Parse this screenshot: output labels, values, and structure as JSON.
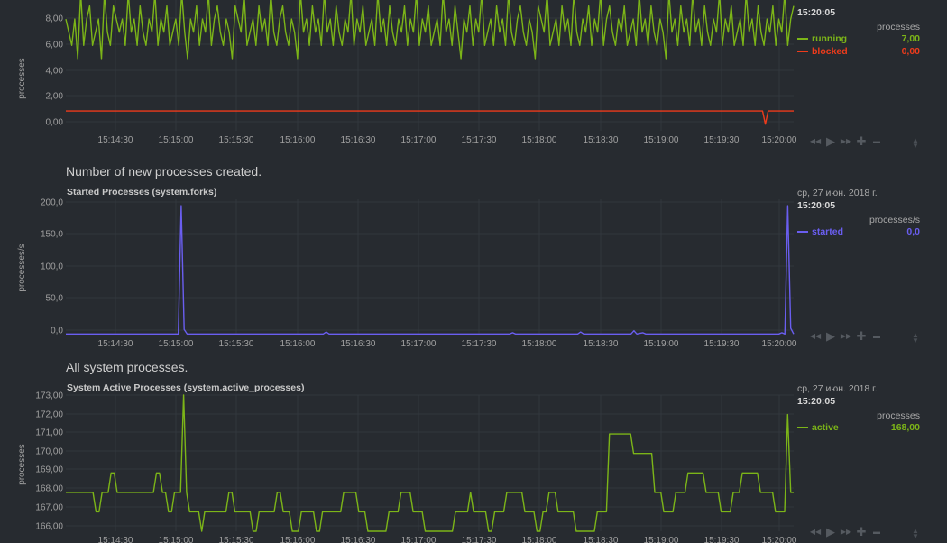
{
  "charts": [
    {
      "id": "processes",
      "description": "",
      "title": "",
      "date": "",
      "time": "15:20:05",
      "units": "processes",
      "ylabel": "processes",
      "series": [
        {
          "name": "running",
          "color": "#7cb518",
          "value": "7,00"
        },
        {
          "name": "blocked",
          "color": "#ee3b1b",
          "value": "0,00"
        }
      ]
    },
    {
      "id": "forks",
      "description": "Number of new processes created.",
      "title": "Started Processes (system.forks)",
      "date": "ср, 27 июн. 2018 г.",
      "time": "15:20:05",
      "units": "processes/s",
      "ylabel": "processes/s",
      "series": [
        {
          "name": "started",
          "color": "#6a5ef0",
          "value": "0,0"
        }
      ]
    },
    {
      "id": "active",
      "description": "All system processes.",
      "title": "System Active Processes (system.active_processes)",
      "date": "ср, 27 июн. 2018 г.",
      "time": "15:20:05",
      "units": "processes",
      "ylabel": "processes",
      "series": [
        {
          "name": "active",
          "color": "#7cb518",
          "value": "168,00"
        }
      ]
    }
  ],
  "toolbar_icons": [
    "rewind-icon",
    "play-icon",
    "fast-forward-icon",
    "zoom-in-icon",
    "zoom-out-icon"
  ],
  "chart_data": [
    {
      "type": "line",
      "x_ticks": [
        "15:14:30",
        "15:15:00",
        "15:15:30",
        "15:16:00",
        "15:16:30",
        "15:17:00",
        "15:17:30",
        "15:18:00",
        "15:18:30",
        "15:19:00",
        "15:19:30",
        "15:20:00"
      ],
      "y_ticks": [
        "0,00",
        "2,00",
        "4,00",
        "6,00",
        "8,00"
      ],
      "ylim": [
        -1.5,
        9
      ],
      "ylabel": "processes",
      "grid": true,
      "series": [
        {
          "name": "running",
          "values": [
            7,
            6,
            5,
            7,
            4,
            9,
            5,
            7,
            8,
            5,
            6,
            7,
            4,
            9,
            6,
            5,
            8,
            7,
            6,
            7,
            5,
            9,
            6,
            7,
            5,
            8,
            6,
            5,
            7,
            6,
            9,
            5,
            7,
            6,
            8,
            5,
            6,
            7,
            5,
            9,
            6,
            4,
            7,
            6,
            8,
            5,
            7,
            6,
            9,
            5,
            7,
            8,
            6,
            5,
            7,
            6,
            4,
            8,
            7,
            6,
            9,
            5,
            6,
            7,
            5,
            8,
            6,
            7,
            5,
            9,
            6,
            5,
            7,
            8,
            6,
            5,
            7,
            6,
            4,
            9,
            6,
            7,
            5,
            8,
            6,
            7,
            5,
            9,
            6,
            7,
            5,
            8,
            6,
            5,
            7,
            6,
            9,
            5,
            7,
            6,
            8,
            5,
            6,
            7,
            5,
            9,
            6,
            7,
            5,
            8,
            6,
            5,
            7,
            6,
            8,
            5,
            7,
            6,
            9,
            5,
            7,
            6,
            8,
            5,
            6,
            7,
            5,
            9,
            6,
            7,
            5,
            8,
            6,
            4,
            7,
            6,
            8,
            5,
            7,
            6,
            9,
            5,
            6,
            7,
            5,
            8,
            6,
            7,
            5,
            9,
            6,
            5,
            7,
            8,
            6,
            5,
            7,
            6,
            4,
            8,
            7,
            6,
            9,
            5,
            6,
            7,
            5,
            8,
            6,
            7,
            5,
            9,
            6,
            5,
            7,
            6,
            8,
            5,
            7,
            6,
            9,
            5,
            7,
            8,
            6,
            5,
            7,
            6,
            8,
            5,
            6,
            7,
            5,
            9,
            6,
            7,
            5,
            8,
            6,
            5,
            7,
            6,
            4,
            9,
            6,
            7,
            5,
            8,
            6,
            7,
            5,
            9,
            6,
            7,
            5,
            8,
            6,
            5,
            7,
            6,
            9,
            5,
            7,
            6,
            8,
            5,
            6,
            7,
            5,
            9,
            6,
            7,
            5,
            8,
            6,
            5,
            7,
            6,
            8,
            5,
            7,
            6,
            9,
            5,
            7,
            8
          ]
        },
        {
          "name": "blocked",
          "values": [
            0,
            0,
            0,
            0,
            0,
            0,
            0,
            0,
            0,
            0,
            0,
            0,
            0,
            0,
            0,
            0,
            0,
            0,
            0,
            0,
            0,
            0,
            0,
            0,
            0,
            0,
            0,
            0,
            0,
            0,
            0,
            0,
            0,
            0,
            0,
            0,
            0,
            0,
            0,
            0,
            0,
            0,
            0,
            0,
            0,
            0,
            0,
            0,
            0,
            0,
            0,
            0,
            0,
            0,
            0,
            0,
            0,
            0,
            0,
            0,
            0,
            0,
            0,
            0,
            0,
            0,
            0,
            0,
            0,
            0,
            0,
            0,
            0,
            0,
            0,
            0,
            0,
            0,
            0,
            0,
            0,
            0,
            0,
            0,
            0,
            0,
            0,
            0,
            0,
            0,
            0,
            0,
            0,
            0,
            0,
            0,
            0,
            0,
            0,
            0,
            0,
            0,
            0,
            0,
            0,
            0,
            0,
            0,
            0,
            0,
            0,
            0,
            0,
            0,
            0,
            0,
            0,
            0,
            0,
            0,
            0,
            0,
            0,
            0,
            0,
            0,
            0,
            0,
            0,
            0,
            0,
            0,
            0,
            0,
            0,
            0,
            0,
            0,
            0,
            0,
            0,
            0,
            0,
            0,
            0,
            0,
            0,
            0,
            0,
            0,
            0,
            0,
            0,
            0,
            0,
            0,
            0,
            0,
            0,
            0,
            0,
            0,
            0,
            0,
            0,
            0,
            0,
            0,
            0,
            0,
            0,
            0,
            0,
            0,
            0,
            0,
            0,
            0,
            0,
            0,
            0,
            0,
            0,
            0,
            0,
            0,
            0,
            0,
            0,
            0,
            0,
            0,
            0,
            0,
            0,
            0,
            0,
            0,
            0,
            0,
            0,
            0,
            0,
            0,
            0,
            0,
            0,
            0,
            0,
            0,
            0,
            0,
            0,
            0,
            0,
            0,
            0,
            0,
            0,
            0,
            0,
            0,
            0,
            0,
            0,
            0,
            0,
            0,
            0,
            0,
            0,
            0,
            0,
            0,
            0,
            0,
            0,
            0,
            0,
            0,
            0,
            0,
            0,
            0,
            0,
            0,
            0,
            -1,
            0,
            0,
            0,
            0,
            0,
            0,
            0,
            0,
            0,
            0
          ]
        }
      ]
    },
    {
      "type": "line",
      "x_ticks": [
        "15:14:30",
        "15:15:00",
        "15:15:30",
        "15:16:00",
        "15:16:30",
        "15:17:00",
        "15:17:30",
        "15:18:00",
        "15:18:30",
        "15:19:00",
        "15:19:30",
        "15:20:00"
      ],
      "y_ticks": [
        "0,0",
        "50,0",
        "100,0",
        "150,0",
        "200,0"
      ],
      "ylim": [
        0,
        210
      ],
      "ylabel": "processes/s",
      "grid": true,
      "series": [
        {
          "name": "started",
          "values": [
            1,
            1,
            1,
            1,
            1,
            1,
            1,
            1,
            1,
            1,
            1,
            1,
            1,
            1,
            1,
            1,
            1,
            1,
            1,
            1,
            1,
            1,
            1,
            1,
            1,
            1,
            1,
            1,
            1,
            1,
            1,
            1,
            1,
            1,
            1,
            1,
            1,
            1,
            1,
            200,
            8,
            1,
            1,
            1,
            1,
            1,
            1,
            1,
            1,
            1,
            1,
            1,
            1,
            1,
            1,
            1,
            1,
            1,
            1,
            1,
            1,
            1,
            1,
            1,
            1,
            1,
            1,
            1,
            1,
            1,
            1,
            1,
            1,
            1,
            1,
            1,
            1,
            1,
            1,
            1,
            1,
            1,
            1,
            1,
            1,
            1,
            1,
            1,
            4,
            1,
            1,
            1,
            1,
            1,
            1,
            1,
            1,
            1,
            1,
            1,
            1,
            1,
            1,
            1,
            1,
            1,
            1,
            1,
            1,
            1,
            1,
            1,
            1,
            1,
            1,
            1,
            1,
            1,
            1,
            1,
            1,
            1,
            1,
            1,
            1,
            1,
            1,
            1,
            1,
            1,
            1,
            1,
            1,
            1,
            1,
            1,
            1,
            1,
            1,
            1,
            1,
            1,
            1,
            1,
            1,
            1,
            1,
            1,
            1,
            1,
            1,
            3,
            1,
            1,
            1,
            1,
            1,
            1,
            1,
            1,
            1,
            1,
            1,
            1,
            1,
            1,
            1,
            1,
            1,
            1,
            1,
            1,
            1,
            1,
            4,
            1,
            1,
            1,
            1,
            1,
            1,
            1,
            1,
            1,
            1,
            1,
            1,
            1,
            1,
            1,
            1,
            1,
            6,
            1,
            2,
            3,
            1,
            1,
            1,
            1,
            1,
            1,
            1,
            1,
            1,
            1,
            1,
            1,
            1,
            1,
            1,
            1,
            1,
            1,
            1,
            1,
            1,
            1,
            1,
            1,
            1,
            1,
            1,
            1,
            1,
            1,
            1,
            1,
            1,
            1,
            1,
            1,
            1,
            1,
            1,
            1,
            1,
            1,
            1,
            1,
            1,
            1,
            3,
            1,
            200,
            10,
            1
          ]
        }
      ]
    },
    {
      "type": "line",
      "x_ticks": [
        "15:14:30",
        "15:15:00",
        "15:15:30",
        "15:16:00",
        "15:16:30",
        "15:17:00",
        "15:17:30",
        "15:18:00",
        "15:18:30",
        "15:19:00",
        "15:19:30",
        "15:20:00"
      ],
      "y_ticks": [
        "166,00",
        "167,00",
        "168,00",
        "169,00",
        "170,00",
        "171,00",
        "172,00",
        "173,00"
      ],
      "ylim": [
        166,
        173
      ],
      "ylabel": "processes",
      "grid": true,
      "series": [
        {
          "name": "active",
          "values": [
            168,
            168,
            168,
            168,
            168,
            168,
            168,
            168,
            168,
            168,
            167,
            167,
            168,
            168,
            168,
            169,
            169,
            168,
            168,
            168,
            168,
            168,
            168,
            168,
            168,
            168,
            168,
            168,
            168,
            168,
            169,
            169,
            168,
            168,
            167,
            167,
            168,
            168,
            168,
            173,
            168,
            167,
            167,
            167,
            167,
            166,
            167,
            167,
            167,
            167,
            167,
            167,
            167,
            167,
            168,
            168,
            167,
            167,
            167,
            167,
            167,
            167,
            166,
            166,
            167,
            167,
            167,
            167,
            167,
            167,
            168,
            168,
            167,
            167,
            167,
            166,
            166,
            166,
            167,
            167,
            167,
            167,
            167,
            166,
            166,
            167,
            167,
            167,
            167,
            167,
            167,
            167,
            168,
            168,
            168,
            168,
            168,
            167,
            167,
            167,
            166,
            166,
            166,
            166,
            166,
            166,
            166,
            167,
            167,
            167,
            167,
            168,
            168,
            168,
            168,
            167,
            167,
            167,
            167,
            166,
            166,
            166,
            166,
            166,
            166,
            166,
            166,
            166,
            166,
            167,
            167,
            167,
            167,
            167,
            168,
            167,
            167,
            167,
            167,
            167,
            166,
            166,
            167,
            167,
            167,
            167,
            168,
            168,
            168,
            168,
            168,
            168,
            167,
            167,
            167,
            167,
            166,
            166,
            167,
            167,
            168,
            168,
            168,
            167,
            167,
            167,
            167,
            167,
            167,
            166,
            166,
            166,
            166,
            166,
            166,
            166,
            167,
            167,
            167,
            167,
            171,
            171,
            171,
            171,
            171,
            171,
            171,
            171,
            170,
            170,
            170,
            170,
            170,
            170,
            170,
            168,
            168,
            168,
            167,
            167,
            167,
            167,
            168,
            168,
            168,
            168,
            169,
            169,
            169,
            169,
            169,
            169,
            168,
            168,
            168,
            168,
            168,
            167,
            167,
            167,
            167,
            168,
            168,
            168,
            169,
            169,
            169,
            169,
            169,
            169,
            168,
            168,
            168,
            168,
            168,
            167,
            167,
            167,
            167,
            172,
            168,
            168
          ]
        }
      ]
    }
  ]
}
